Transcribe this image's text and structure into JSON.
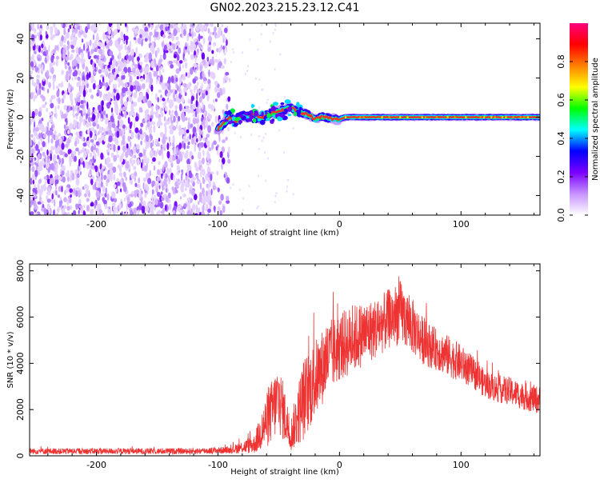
{
  "title": "GN02.2023.215.23.12.C41",
  "chart_data": [
    {
      "type": "heatmap",
      "xlabel": "Height of straight line (km)",
      "ylabel": "Frequency (Hz)",
      "xlim": [
        -255,
        165
      ],
      "ylim": [
        -50,
        48
      ],
      "x_ticks": [
        -200,
        -100,
        0,
        100
      ],
      "y_ticks": [
        -40,
        -20,
        0,
        20,
        40
      ],
      "colorbar": {
        "label": "Normalized spectral amplitude",
        "range": [
          0.0,
          1.0
        ],
        "ticks": [
          0.0,
          0.2,
          0.4,
          0.6,
          0.8
        ],
        "colors": [
          "#ffffff",
          "#c792ff",
          "#7a00ff",
          "#0000ff",
          "#00ffff",
          "#00ff00",
          "#ffff00",
          "#ff8000",
          "#ff0000",
          "#ff0080"
        ]
      },
      "noise_region": {
        "x": [
          -255,
          -90
        ],
        "amplitude": 0.3
      },
      "signal_track": [
        {
          "x": -100,
          "freq": -6
        },
        {
          "x": -95,
          "freq": -3
        },
        {
          "x": -90,
          "freq": 0
        },
        {
          "x": -85,
          "freq": -2
        },
        {
          "x": -80,
          "freq": 1
        },
        {
          "x": -75,
          "freq": 0
        },
        {
          "x": -70,
          "freq": 2
        },
        {
          "x": -65,
          "freq": -1
        },
        {
          "x": -60,
          "freq": 1
        },
        {
          "x": -55,
          "freq": 2
        },
        {
          "x": -50,
          "freq": 3
        },
        {
          "x": -45,
          "freq": 4
        },
        {
          "x": -40,
          "freq": 5
        },
        {
          "x": -35,
          "freq": 3
        },
        {
          "x": -30,
          "freq": 2
        },
        {
          "x": -25,
          "freq": 1
        },
        {
          "x": -20,
          "freq": -1
        },
        {
          "x": -15,
          "freq": 0
        },
        {
          "x": -10,
          "freq": 0
        },
        {
          "x": -5,
          "freq": -1
        },
        {
          "x": 0,
          "freq": -1
        },
        {
          "x": 5,
          "freq": 0
        },
        {
          "x": 165,
          "freq": 0
        }
      ]
    },
    {
      "type": "line",
      "xlabel": "Height of straight line (km)",
      "ylabel": "SNR (10 * v/v)",
      "xlim": [
        -255,
        165
      ],
      "ylim": [
        0,
        8300
      ],
      "x_ticks": [
        -200,
        -100,
        0,
        100
      ],
      "y_ticks": [
        0,
        2000,
        4000,
        6000,
        8000
      ],
      "color": "#ee3333",
      "envelope": {
        "x": [
          -255,
          -120,
          -90,
          -70,
          -60,
          -50,
          -40,
          -30,
          -20,
          -10,
          0,
          10,
          20,
          30,
          40,
          50,
          60,
          70,
          80,
          90,
          100,
          110,
          120,
          130,
          140,
          150,
          165
        ],
        "mean": [
          200,
          200,
          250,
          500,
          1500,
          2500,
          900,
          2400,
          3300,
          4200,
          4700,
          5000,
          5300,
          5500,
          5900,
          6200,
          5600,
          4900,
          4600,
          4300,
          4000,
          3600,
          3100,
          2900,
          2800,
          2600,
          2400
        ],
        "spread": [
          130,
          130,
          150,
          400,
          1200,
          1600,
          700,
          1800,
          1700,
          1600,
          1500,
          1500,
          1400,
          1300,
          1300,
          1400,
          1200,
          1000,
          900,
          900,
          800,
          700,
          600,
          600,
          600,
          600,
          600
        ]
      }
    }
  ]
}
